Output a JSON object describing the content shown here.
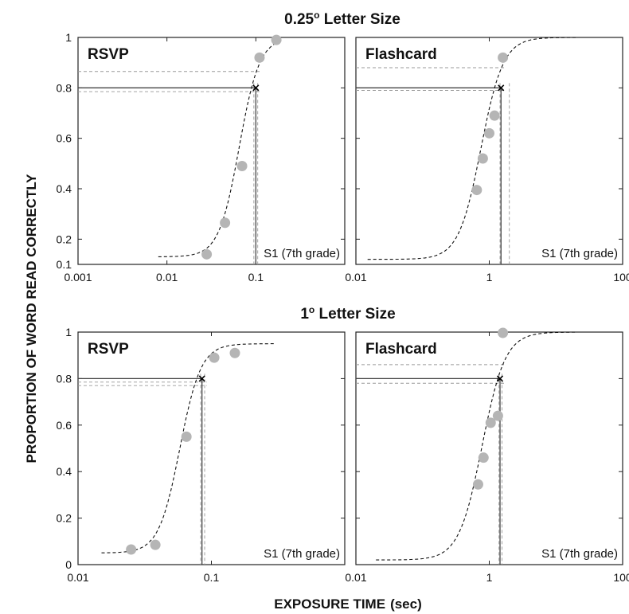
{
  "figure": {
    "ylabel": "PROPORTION OF WORD READ CORRECTLY",
    "xlabel": "EXPOSURE TIME",
    "xlabel_unit": "(sec)",
    "row_titles": [
      "0.25",
      "1"
    ],
    "row_title_suffix": " Letter Size",
    "degree_mark": "o",
    "subject_label": "S1 (7th grade)"
  },
  "chart_data": [
    {
      "type": "scatter",
      "title": "RSVP",
      "row": 0,
      "col": 0,
      "xscale": "log",
      "xlim": [
        0.001,
        1
      ],
      "ylim": [
        0.1,
        1
      ],
      "xticks": [
        0.001,
        0.01,
        0.1
      ],
      "xtick_labels": [
        "0.001",
        "0.01",
        "0.1"
      ],
      "yticks": [
        0.1,
        0.2,
        0.4,
        0.6,
        0.8,
        1
      ],
      "ytick_labels": [
        "0.1",
        "0.2",
        "0.4",
        "0.6",
        "0.8",
        "1"
      ],
      "points": {
        "x": [
          0.028,
          0.045,
          0.07,
          0.11,
          0.17
        ],
        "y": [
          0.14,
          0.265,
          0.49,
          0.92,
          0.99
        ]
      },
      "fit": {
        "x_start": 0.008,
        "x_end": 0.2,
        "lower": 0.13,
        "upper": 1.0,
        "x50": 0.065,
        "slope": 3.8
      },
      "threshold": {
        "x": 0.1,
        "y": 0.8
      },
      "ci_x": [
        0.095,
        0.105
      ],
      "ci_y": [
        0.785,
        0.865
      ]
    },
    {
      "type": "scatter",
      "title": "Flashcard",
      "row": 0,
      "col": 1,
      "xscale": "log",
      "xlim": [
        0.01,
        100
      ],
      "ylim": [
        0.1,
        1
      ],
      "xticks": [
        0.01,
        1,
        100
      ],
      "xtick_labels": [
        "0.01",
        "1",
        "100"
      ],
      "yticks": [
        0.1,
        0.2,
        0.4,
        0.6,
        0.8,
        1
      ],
      "ytick_labels": [],
      "points": {
        "x": [
          0.65,
          0.8,
          1.0,
          1.2,
          1.6
        ],
        "y": [
          0.395,
          0.52,
          0.62,
          0.69,
          0.92
        ]
      },
      "fit": {
        "x_start": 0.015,
        "x_end": 20,
        "lower": 0.12,
        "upper": 1.0,
        "x50": 0.75,
        "slope": 2.6
      },
      "threshold": {
        "x": 1.5,
        "y": 0.8
      },
      "ci_x": [
        1.45,
        2.0
      ],
      "ci_y": [
        0.79,
        0.88
      ]
    },
    {
      "type": "scatter",
      "title": "RSVP",
      "row": 1,
      "col": 0,
      "xscale": "log",
      "xlim": [
        0.01,
        1
      ],
      "ylim": [
        0,
        1
      ],
      "xticks": [
        0.01,
        0.1
      ],
      "xtick_labels": [
        "0.01",
        "0.1"
      ],
      "yticks": [
        0,
        0.2,
        0.4,
        0.6,
        0.8,
        1
      ],
      "ytick_labels": [
        "0",
        "0.2",
        "0.4",
        "0.6",
        "0.8",
        "1"
      ],
      "points": {
        "x": [
          0.025,
          0.038,
          0.065,
          0.105,
          0.15
        ],
        "y": [
          0.065,
          0.085,
          0.55,
          0.89,
          0.91
        ]
      },
      "fit": {
        "x_start": 0.015,
        "x_end": 0.3,
        "lower": 0.05,
        "upper": 0.95,
        "x50": 0.058,
        "slope": 5.5
      },
      "threshold": {
        "x": 0.085,
        "y": 0.8
      },
      "ci_x": [
        0.083,
        0.089
      ],
      "ci_y": [
        0.77,
        0.785
      ]
    },
    {
      "type": "scatter",
      "title": "Flashcard",
      "row": 1,
      "col": 1,
      "xscale": "log",
      "xlim": [
        0.01,
        100
      ],
      "ylim": [
        0,
        1
      ],
      "xticks": [
        0.01,
        1,
        100
      ],
      "xtick_labels": [
        "0.01",
        "1",
        "100"
      ],
      "yticks": [
        0,
        0.2,
        0.4,
        0.6,
        0.8,
        1
      ],
      "ytick_labels": [],
      "points": {
        "x": [
          0.68,
          0.82,
          1.05,
          1.35,
          1.6
        ],
        "y": [
          0.345,
          0.46,
          0.61,
          0.64,
          1.0
        ]
      },
      "fit": {
        "x_start": 0.02,
        "x_end": 20,
        "lower": 0.02,
        "upper": 1.0,
        "x50": 0.78,
        "slope": 2.5
      },
      "threshold": {
        "x": 1.45,
        "y": 0.8
      },
      "ci_x": [
        1.4,
        1.55
      ],
      "ci_y": [
        0.78,
        0.86
      ]
    }
  ]
}
